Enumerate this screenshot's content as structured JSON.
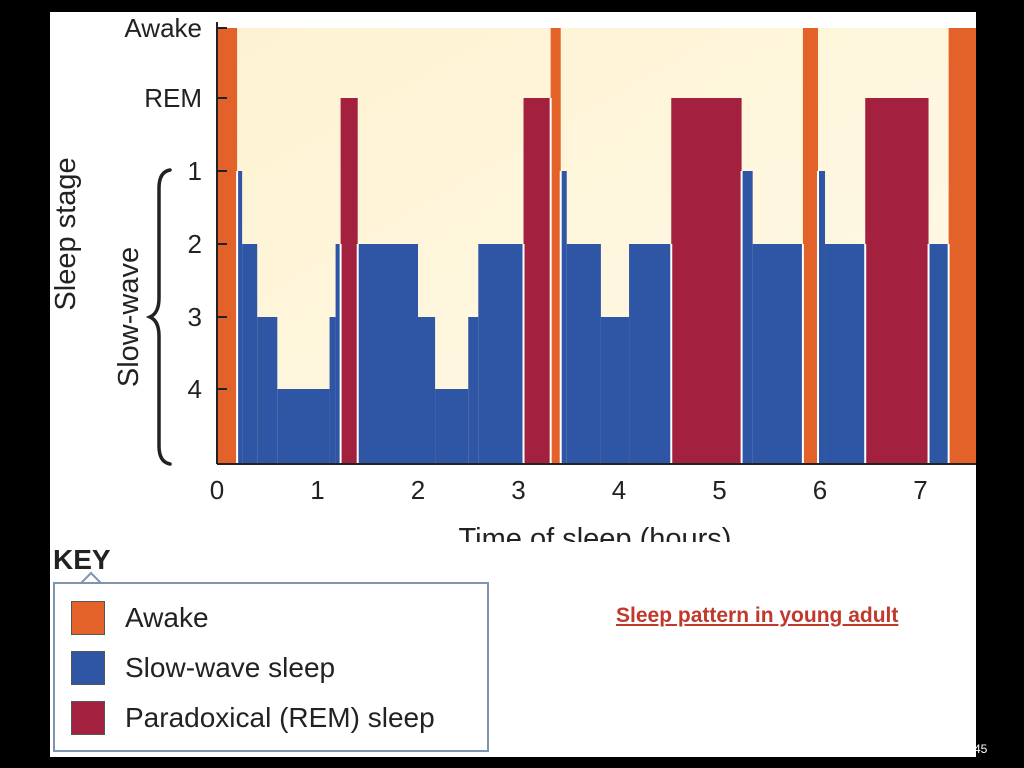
{
  "chart_data": {
    "type": "hypnogram",
    "xlabel": "Time of sleep (hours)",
    "ylabel_outer": "Sleep stage",
    "ylabel_bracket": "Slow-wave",
    "xlim": [
      0,
      7.58
    ],
    "x_ticks": [
      "0",
      "1",
      "2",
      "3",
      "4",
      "5",
      "6",
      "7"
    ],
    "y_levels": [
      "Awake",
      "REM",
      "1",
      "2",
      "3",
      "4"
    ],
    "colors": {
      "awake": "#e2622a",
      "slow_wave": "#2f55a5",
      "rem": "#a3203f",
      "background_top": "#fdf3d2",
      "background_bottom": "#fff9e8"
    },
    "segments": [
      {
        "start": 0.0,
        "end": 0.2,
        "stage": "Awake",
        "type": "awake"
      },
      {
        "start": 0.2,
        "end": 0.25,
        "stage": "1",
        "type": "slow_wave"
      },
      {
        "start": 0.25,
        "end": 0.4,
        "stage": "2",
        "type": "slow_wave"
      },
      {
        "start": 0.4,
        "end": 0.6,
        "stage": "3",
        "type": "slow_wave"
      },
      {
        "start": 0.6,
        "end": 1.12,
        "stage": "4",
        "type": "slow_wave"
      },
      {
        "start": 1.12,
        "end": 1.18,
        "stage": "3",
        "type": "slow_wave"
      },
      {
        "start": 1.18,
        "end": 1.23,
        "stage": "2",
        "type": "slow_wave"
      },
      {
        "start": 1.23,
        "end": 1.4,
        "stage": "REM",
        "type": "rem"
      },
      {
        "start": 1.4,
        "end": 2.0,
        "stage": "2",
        "type": "slow_wave"
      },
      {
        "start": 2.0,
        "end": 2.17,
        "stage": "3",
        "type": "slow_wave"
      },
      {
        "start": 2.17,
        "end": 2.5,
        "stage": "4",
        "type": "slow_wave"
      },
      {
        "start": 2.5,
        "end": 2.6,
        "stage": "3",
        "type": "slow_wave"
      },
      {
        "start": 2.6,
        "end": 3.05,
        "stage": "2",
        "type": "slow_wave"
      },
      {
        "start": 3.05,
        "end": 3.32,
        "stage": "REM",
        "type": "rem"
      },
      {
        "start": 3.32,
        "end": 3.42,
        "stage": "Awake",
        "type": "awake"
      },
      {
        "start": 3.42,
        "end": 3.48,
        "stage": "1",
        "type": "slow_wave"
      },
      {
        "start": 3.48,
        "end": 3.82,
        "stage": "2",
        "type": "slow_wave"
      },
      {
        "start": 3.82,
        "end": 4.1,
        "stage": "3",
        "type": "slow_wave"
      },
      {
        "start": 4.1,
        "end": 4.52,
        "stage": "2",
        "type": "slow_wave"
      },
      {
        "start": 4.52,
        "end": 5.22,
        "stage": "REM",
        "type": "rem"
      },
      {
        "start": 5.22,
        "end": 5.33,
        "stage": "1",
        "type": "slow_wave"
      },
      {
        "start": 5.33,
        "end": 5.83,
        "stage": "2",
        "type": "slow_wave"
      },
      {
        "start": 5.83,
        "end": 5.98,
        "stage": "Awake",
        "type": "awake"
      },
      {
        "start": 5.98,
        "end": 6.05,
        "stage": "1",
        "type": "slow_wave"
      },
      {
        "start": 6.05,
        "end": 6.45,
        "stage": "2",
        "type": "slow_wave"
      },
      {
        "start": 6.45,
        "end": 7.08,
        "stage": "REM",
        "type": "rem"
      },
      {
        "start": 7.08,
        "end": 7.28,
        "stage": "2",
        "type": "slow_wave"
      },
      {
        "start": 7.28,
        "end": 7.58,
        "stage": "Awake",
        "type": "awake"
      }
    ]
  },
  "key": {
    "title": "KEY",
    "items": [
      {
        "label": "Awake",
        "color": "#e2622a"
      },
      {
        "label": "Slow-wave sleep",
        "color": "#2f55a5"
      },
      {
        "label": "Paradoxical (REM) sleep",
        "color": "#a3203f"
      }
    ]
  },
  "caption": "Sleep pattern in young adult",
  "slide_number": "45"
}
